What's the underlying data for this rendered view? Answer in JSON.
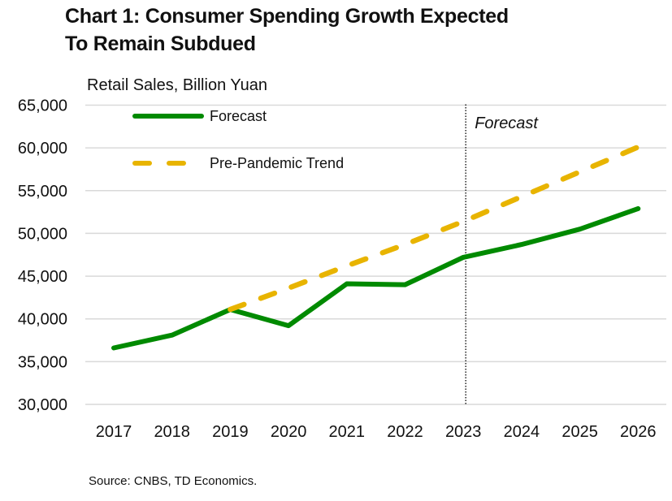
{
  "chart_data": {
    "type": "line",
    "title_lines": [
      "Chart 1: Consumer Spending Growth Expected",
      "To Remain Subdued"
    ],
    "title": "Chart 1: Consumer Spending Growth Expected To Remain Subdued",
    "ylabel": "Retail Sales, Billion Yuan",
    "xlabel": "",
    "source": "Source: CNBS, TD Economics.",
    "categories": [
      "2017",
      "2018",
      "2019",
      "2020",
      "2021",
      "2022",
      "2023",
      "2024",
      "2025",
      "2026"
    ],
    "ylim": [
      30000,
      65000
    ],
    "yticks": [
      30000,
      35000,
      40000,
      45000,
      50000,
      55000,
      60000,
      65000
    ],
    "ytick_labels": [
      "30,000",
      "35,000",
      "40,000",
      "45,000",
      "50,000",
      "55,000",
      "60,000",
      "65,000"
    ],
    "grid": true,
    "legend_position": "top-left",
    "series": [
      {
        "name": "Forecast",
        "style": "solid",
        "color": "#008A00",
        "values": [
          36600,
          38100,
          41100,
          39200,
          44100,
          44000,
          47200,
          48700,
          50500,
          52900
        ]
      },
      {
        "name": "Pre-Pandemic Trend",
        "style": "dashed",
        "color": "#E8B400",
        "values": [
          null,
          null,
          41100,
          43600,
          46200,
          48700,
          51400,
          54300,
          57200,
          60100
        ]
      }
    ],
    "annotations": [
      {
        "text": "Forecast",
        "at_category": "2023",
        "type": "vertical-dotted-line",
        "style": "italic"
      }
    ]
  },
  "colors": {
    "gridline": "#D9D9D9",
    "divider": "#222222",
    "text": "#111111"
  }
}
